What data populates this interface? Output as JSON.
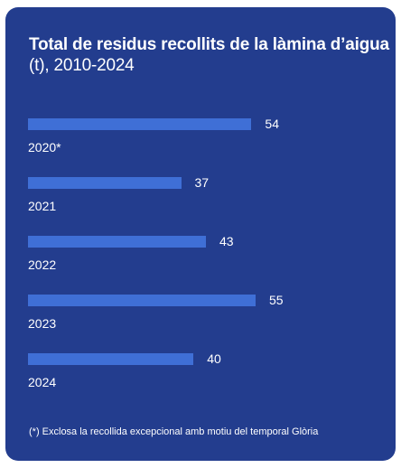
{
  "chart_data": {
    "type": "bar",
    "orientation": "horizontal",
    "title_bold": "Total de  residus recollits de la làmina d’aigua",
    "title_regular": " (t), 2010-2024",
    "categories": [
      "2020*",
      "2021",
      "2022",
      "2023",
      "2024"
    ],
    "values": [
      54,
      37,
      43,
      55,
      40
    ],
    "value_labels": [
      "54",
      "37",
      "43",
      "55",
      "40"
    ],
    "xlim": [
      0,
      55
    ],
    "grid": false,
    "legend": "none",
    "footnote": "(*) Exclosa la recollida excepcional amb motiu del temporal Glòria"
  },
  "colors": {
    "background": "#233d8e",
    "bar": "#3f6fd6",
    "text": "#ffffff"
  }
}
